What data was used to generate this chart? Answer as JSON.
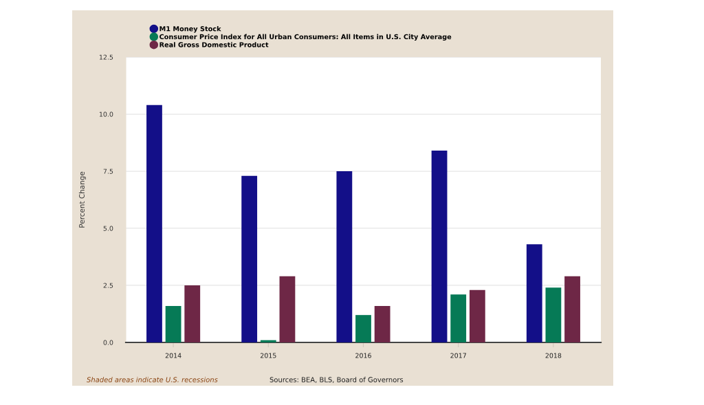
{
  "chart_data": {
    "type": "bar",
    "ylabel": "Percent Change",
    "annotations": [
      "Shaded areas indicate U.S. recessions",
      "Sources: BEA, BLS, Board of Governors"
    ],
    "categories": [
      "2014",
      "2015",
      "2016",
      "2017",
      "2018"
    ],
    "series": [
      {
        "name": "M1 Money Stock",
        "color": "#130f88",
        "values": [
          10.4,
          7.3,
          7.5,
          8.4,
          4.3
        ]
      },
      {
        "name": "Consumer Price Index for All Urban Consumers: All Items in U.S. City Average",
        "color": "#067a56",
        "values": [
          1.6,
          0.1,
          1.2,
          2.1,
          2.4
        ]
      },
      {
        "name": "Real Gross Domestic Product",
        "color": "#6e2746",
        "values": [
          2.5,
          2.9,
          1.6,
          2.3,
          2.9
        ]
      }
    ],
    "ylim": [
      0,
      12.5
    ],
    "yticks": [
      {
        "value": 0,
        "label": "0.0"
      },
      2.5,
      {
        "value": 5,
        "label": "5.0"
      },
      7.5,
      {
        "value": 10,
        "label": "10.0"
      },
      12.5
    ],
    "grid": "y",
    "legend": "top left"
  }
}
